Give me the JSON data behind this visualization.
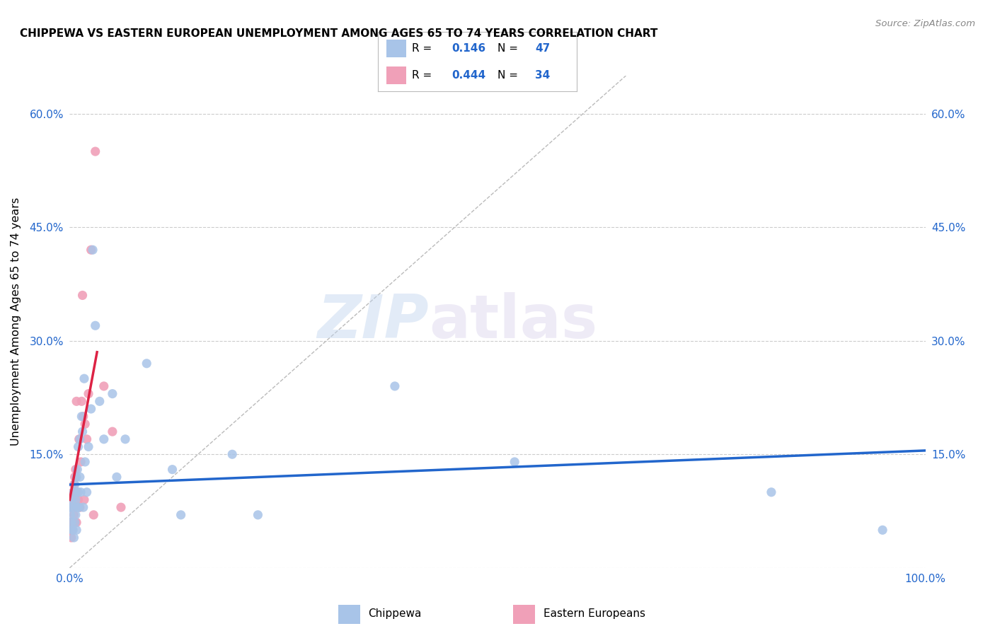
{
  "title": "CHIPPEWA VS EASTERN EUROPEAN UNEMPLOYMENT AMONG AGES 65 TO 74 YEARS CORRELATION CHART",
  "source": "Source: ZipAtlas.com",
  "ylabel": "Unemployment Among Ages 65 to 74 years",
  "xlim": [
    0,
    1.0
  ],
  "ylim": [
    0,
    0.65
  ],
  "xticks": [
    0.0,
    1.0
  ],
  "xticklabels": [
    "0.0%",
    "100.0%"
  ],
  "yticks": [
    0.0,
    0.15,
    0.3,
    0.45,
    0.6
  ],
  "yticklabels": [
    "",
    "15.0%",
    "30.0%",
    "45.0%",
    "60.0%"
  ],
  "chippewa_R": "0.146",
  "chippewa_N": "47",
  "eastern_R": "0.444",
  "eastern_N": "34",
  "chippewa_color": "#a8c4e8",
  "eastern_color": "#f0a0b8",
  "chippewa_line_color": "#2266cc",
  "eastern_line_color": "#dd2244",
  "diagonal_color": "#bbbbbb",
  "watermark_zip": "ZIP",
  "watermark_atlas": "atlas",
  "legend_label_chippewa": "Chippewa",
  "legend_label_eastern": "Eastern Europeans",
  "chippewa_x": [
    0.0,
    0.001,
    0.002,
    0.003,
    0.003,
    0.004,
    0.004,
    0.005,
    0.005,
    0.006,
    0.006,
    0.007,
    0.007,
    0.008,
    0.008,
    0.009,
    0.009,
    0.01,
    0.01,
    0.011,
    0.012,
    0.012,
    0.013,
    0.014,
    0.015,
    0.016,
    0.017,
    0.018,
    0.02,
    0.022,
    0.025,
    0.027,
    0.03,
    0.035,
    0.04,
    0.05,
    0.055,
    0.065,
    0.09,
    0.12,
    0.13,
    0.19,
    0.22,
    0.38,
    0.52,
    0.82,
    0.95
  ],
  "chippewa_y": [
    0.08,
    0.07,
    0.06,
    0.05,
    0.09,
    0.05,
    0.08,
    0.04,
    0.1,
    0.06,
    0.11,
    0.07,
    0.09,
    0.05,
    0.12,
    0.08,
    0.13,
    0.1,
    0.16,
    0.08,
    0.12,
    0.17,
    0.1,
    0.2,
    0.18,
    0.08,
    0.25,
    0.14,
    0.1,
    0.16,
    0.21,
    0.42,
    0.32,
    0.22,
    0.17,
    0.23,
    0.12,
    0.17,
    0.27,
    0.13,
    0.07,
    0.15,
    0.07,
    0.24,
    0.14,
    0.1,
    0.05
  ],
  "eastern_x": [
    0.0,
    0.001,
    0.002,
    0.002,
    0.003,
    0.003,
    0.004,
    0.004,
    0.005,
    0.005,
    0.006,
    0.006,
    0.007,
    0.007,
    0.008,
    0.008,
    0.009,
    0.01,
    0.011,
    0.012,
    0.013,
    0.014,
    0.015,
    0.016,
    0.017,
    0.018,
    0.02,
    0.022,
    0.025,
    0.028,
    0.03,
    0.04,
    0.05,
    0.06
  ],
  "eastern_y": [
    0.05,
    0.06,
    0.04,
    0.08,
    0.05,
    0.09,
    0.06,
    0.1,
    0.07,
    0.11,
    0.06,
    0.12,
    0.08,
    0.13,
    0.06,
    0.22,
    0.1,
    0.09,
    0.17,
    0.08,
    0.14,
    0.22,
    0.36,
    0.2,
    0.09,
    0.19,
    0.17,
    0.23,
    0.42,
    0.07,
    0.55,
    0.24,
    0.18,
    0.08
  ],
  "chippewa_line_x0": 0.0,
  "chippewa_line_y0": 0.11,
  "chippewa_line_x1": 1.0,
  "chippewa_line_y1": 0.155,
  "eastern_line_x0": 0.0,
  "eastern_line_y0": 0.09,
  "eastern_line_x1": 0.032,
  "eastern_line_y1": 0.285
}
